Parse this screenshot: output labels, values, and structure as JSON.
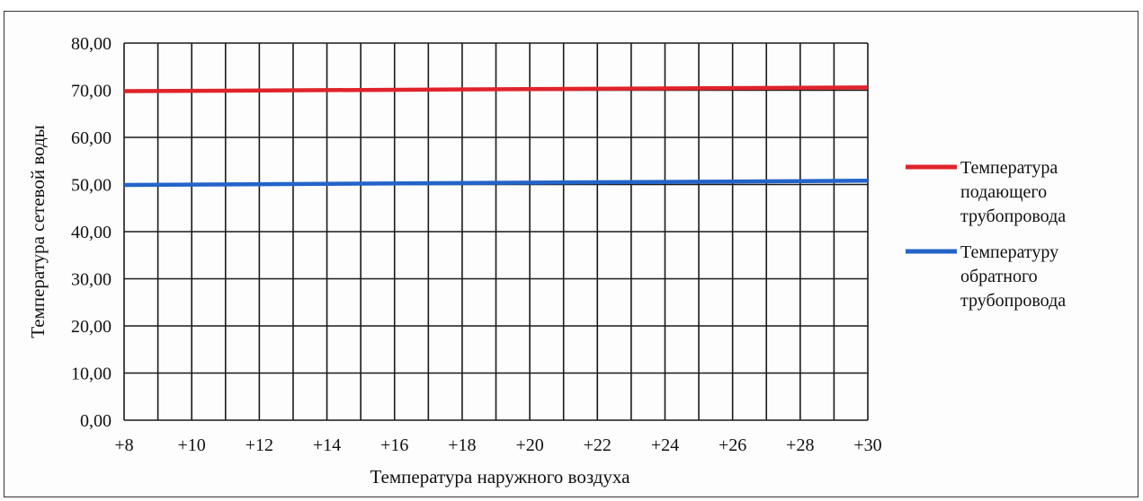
{
  "chart_data": {
    "type": "line",
    "xlabel": "Температура наружного воздуха",
    "ylabel": "Температура сетевой воды",
    "x_ticks": [
      "+8",
      "+10",
      "+12",
      "+14",
      "+16",
      "+18",
      "+20",
      "+22",
      "+24",
      "+26",
      "+28",
      "+30"
    ],
    "y_ticks": [
      "0,00",
      "10,00",
      "20,00",
      "30,00",
      "40,00",
      "50,00",
      "60,00",
      "70,00",
      "80,00"
    ],
    "xlim": [
      8,
      30
    ],
    "ylim": [
      0,
      80
    ],
    "grid": true,
    "legend_position": "right",
    "series": [
      {
        "name": "Температура подающего трубопровода",
        "legend_lines": [
          "Температура",
          "подающего",
          "трубопровода"
        ],
        "color": "#e0232b",
        "x": [
          8,
          30
        ],
        "y": [
          69.8,
          70.6
        ]
      },
      {
        "name": "Температуру обратного трубопровода",
        "legend_lines": [
          "Температуру",
          "обратного",
          "трубопровода"
        ],
        "color": "#2364c8",
        "x": [
          8,
          30
        ],
        "y": [
          49.9,
          50.8
        ]
      }
    ]
  }
}
